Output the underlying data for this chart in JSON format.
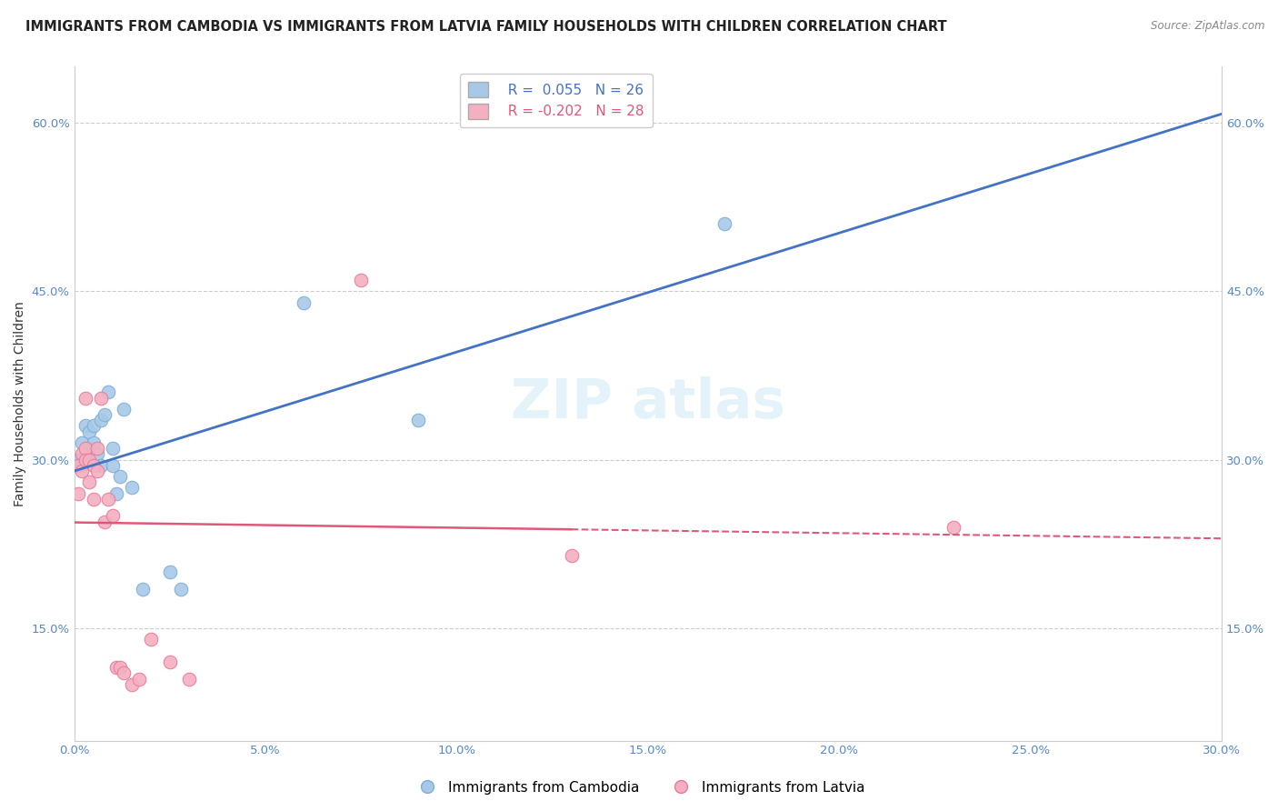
{
  "title": "IMMIGRANTS FROM CAMBODIA VS IMMIGRANTS FROM LATVIA FAMILY HOUSEHOLDS WITH CHILDREN CORRELATION CHART",
  "source": "Source: ZipAtlas.com",
  "ylabel": "Family Households with Children",
  "xlim": [
    0.0,
    0.3
  ],
  "ylim": [
    0.05,
    0.65
  ],
  "xtick_labels": [
    "0.0%",
    "5.0%",
    "10.0%",
    "15.0%",
    "20.0%",
    "25.0%",
    "30.0%"
  ],
  "xtick_vals": [
    0.0,
    0.05,
    0.1,
    0.15,
    0.2,
    0.25,
    0.3
  ],
  "ytick_labels": [
    "15.0%",
    "30.0%",
    "45.0%",
    "60.0%"
  ],
  "ytick_vals": [
    0.15,
    0.3,
    0.45,
    0.6
  ],
  "grid_color": "#cccccc",
  "background_color": "#ffffff",
  "cambodia_x": [
    0.001,
    0.002,
    0.002,
    0.003,
    0.003,
    0.004,
    0.004,
    0.005,
    0.005,
    0.006,
    0.007,
    0.007,
    0.008,
    0.009,
    0.01,
    0.01,
    0.011,
    0.012,
    0.013,
    0.015,
    0.018,
    0.025,
    0.028,
    0.06,
    0.09,
    0.17
  ],
  "cambodia_y": [
    0.3,
    0.295,
    0.315,
    0.305,
    0.33,
    0.31,
    0.325,
    0.33,
    0.315,
    0.305,
    0.295,
    0.335,
    0.34,
    0.36,
    0.295,
    0.31,
    0.27,
    0.285,
    0.345,
    0.275,
    0.185,
    0.2,
    0.185,
    0.44,
    0.335,
    0.51
  ],
  "latvia_x": [
    0.001,
    0.001,
    0.002,
    0.002,
    0.003,
    0.003,
    0.003,
    0.004,
    0.004,
    0.005,
    0.005,
    0.006,
    0.006,
    0.007,
    0.008,
    0.009,
    0.01,
    0.011,
    0.012,
    0.013,
    0.015,
    0.017,
    0.02,
    0.025,
    0.03,
    0.075,
    0.13,
    0.23
  ],
  "latvia_y": [
    0.295,
    0.27,
    0.305,
    0.29,
    0.31,
    0.3,
    0.355,
    0.28,
    0.3,
    0.295,
    0.265,
    0.31,
    0.29,
    0.355,
    0.245,
    0.265,
    0.25,
    0.115,
    0.115,
    0.11,
    0.1,
    0.105,
    0.14,
    0.12,
    0.105,
    0.46,
    0.215,
    0.24
  ],
  "cambodia_color": "#a8c8e8",
  "latvia_color": "#f4b0c0",
  "cambodia_edge": "#7bafd4",
  "latvia_edge": "#e87a9a",
  "line_cambodia_color": "#4472c4",
  "line_latvia_color": "#e05878",
  "R_cambodia": 0.055,
  "N_cambodia": 26,
  "R_latvia": -0.202,
  "N_latvia": 28,
  "legend_labels": [
    "Immigrants from Cambodia",
    "Immigrants from Latvia"
  ],
  "title_fontsize": 10.5,
  "axis_label_fontsize": 10,
  "tick_fontsize": 9.5,
  "legend_fontsize": 11
}
